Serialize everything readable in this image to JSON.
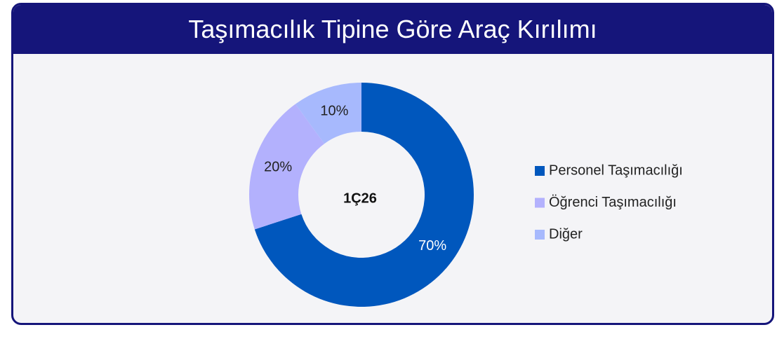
{
  "chart_data": {
    "type": "pie",
    "title": "Taşımacılık Tipine Göre Araç Kırılımı",
    "center_label": "1Ç26",
    "categories": [
      "Personel Taşımacılığı",
      "Öğrenci Taşımacılığı",
      "Diğer"
    ],
    "values": [
      70,
      20,
      10
    ],
    "value_labels": [
      "70%",
      "20%",
      "10%"
    ],
    "colors": [
      "#0057bd",
      "#b3b1fd",
      "#a7b9fd"
    ],
    "label_colors": [
      "#ffffff",
      "#222222",
      "#222222"
    ],
    "donut": true,
    "legend": "right"
  }
}
